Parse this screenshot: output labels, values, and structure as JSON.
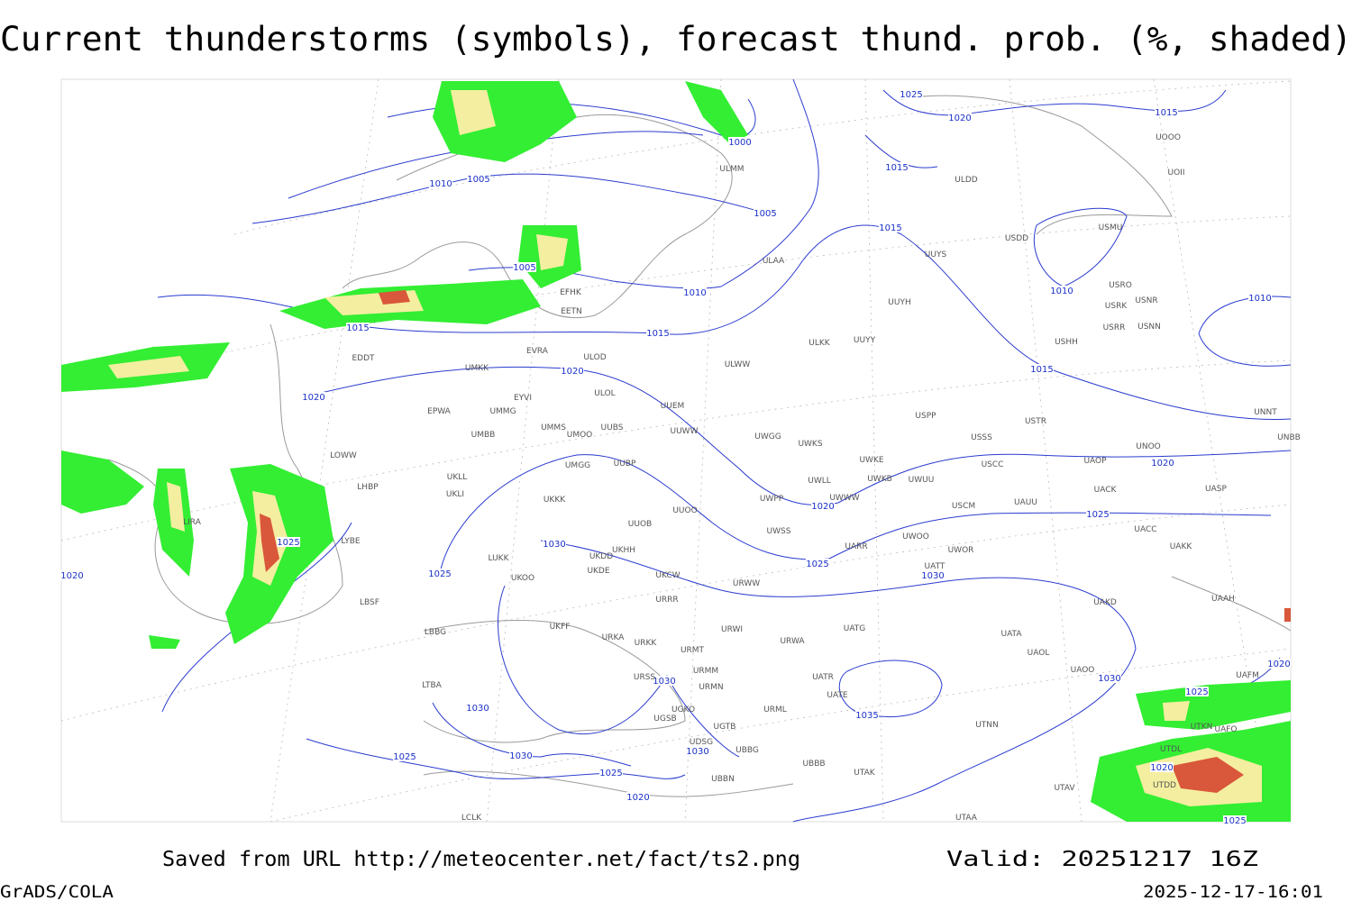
{
  "title": "Current thunderstorms (symbols), forecast thund. prob. (%, shaded)",
  "footer": {
    "source": "Saved from URL http://meteocenter.net/fact/ts2.png",
    "valid": "Valid: 20251217 16Z",
    "software": "GrADS/COLA",
    "timestamp": "2025-12-17-16:01"
  },
  "isobar_labels": [
    "1025",
    "1020",
    "1015",
    "1000",
    "1010",
    "1005",
    "1015",
    "1005",
    "1015",
    "1005",
    "1010",
    "1010",
    "1010",
    "1015",
    "1015",
    "1015",
    "1020",
    "1020",
    "1020",
    "1020",
    "1025",
    "1025",
    "1030",
    "1025",
    "1025",
    "1030",
    "1020",
    "1030",
    "1030",
    "1020",
    "1025",
    "1035",
    "1030",
    "1030",
    "1030",
    "1025",
    "1025",
    "1020",
    "1020",
    "1025"
  ],
  "stations": [
    "ULMM",
    "ULAA",
    "UUYS",
    "ULDD",
    "UOOO",
    "UOII",
    "USDD",
    "USMU",
    "USRO",
    "USRK",
    "USNR",
    "USRR",
    "USNN",
    "UUYH",
    "ULKK",
    "UUYY",
    "USHH",
    "EFHK",
    "EETN",
    "ULOD",
    "EVRA",
    "ULWW",
    "EDDT",
    "UMKK",
    "ULOL",
    "EYVI",
    "UUEM",
    "EPWA",
    "UMMG",
    "USPP",
    "USTR",
    "UNNT",
    "UMMS",
    "UUBS",
    "UMOO",
    "UUWW",
    "UWGG",
    "USSS",
    "UNOO",
    "UNBB",
    "UMBB",
    "UWKS",
    "UWKE",
    "LOWW",
    "UKLL",
    "UMGG",
    "UUBP",
    "UWKB",
    "UWUU",
    "USCC",
    "UAOP",
    "UWLL",
    "UWWW",
    "UACK",
    "UASP",
    "LHBP",
    "UKLI",
    "UKKK",
    "UWPP",
    "USCM",
    "UAUU",
    "UUOO",
    "LIRA",
    "UUOB",
    "UWSS",
    "UACC",
    "LYBE",
    "UKDD",
    "UKHH",
    "UARR",
    "UWOO",
    "UWOR",
    "UAKK",
    "LUKK",
    "UKOO",
    "UKDE",
    "UKCW",
    "UATT",
    "URWW",
    "LBSF",
    "URRR",
    "UAKD",
    "UAAH",
    "UKFF",
    "URWI",
    "UATG",
    "LBBG",
    "URKA",
    "URKK",
    "UATA",
    "URWA",
    "URMT",
    "UAOL",
    "UAOO",
    "UAFM",
    "URMM",
    "UATR",
    "URSS",
    "LTBA",
    "URMN",
    "UATE",
    "UGKO",
    "URML",
    "UGSB",
    "UGTB",
    "UTNN",
    "UTKN",
    "UAFO",
    "UDSG",
    "UBBG",
    "UTDL",
    "UBBB",
    "UTAK",
    "UTDD",
    "UBBN",
    "UTAV",
    "LCLK",
    "UTAA"
  ]
}
